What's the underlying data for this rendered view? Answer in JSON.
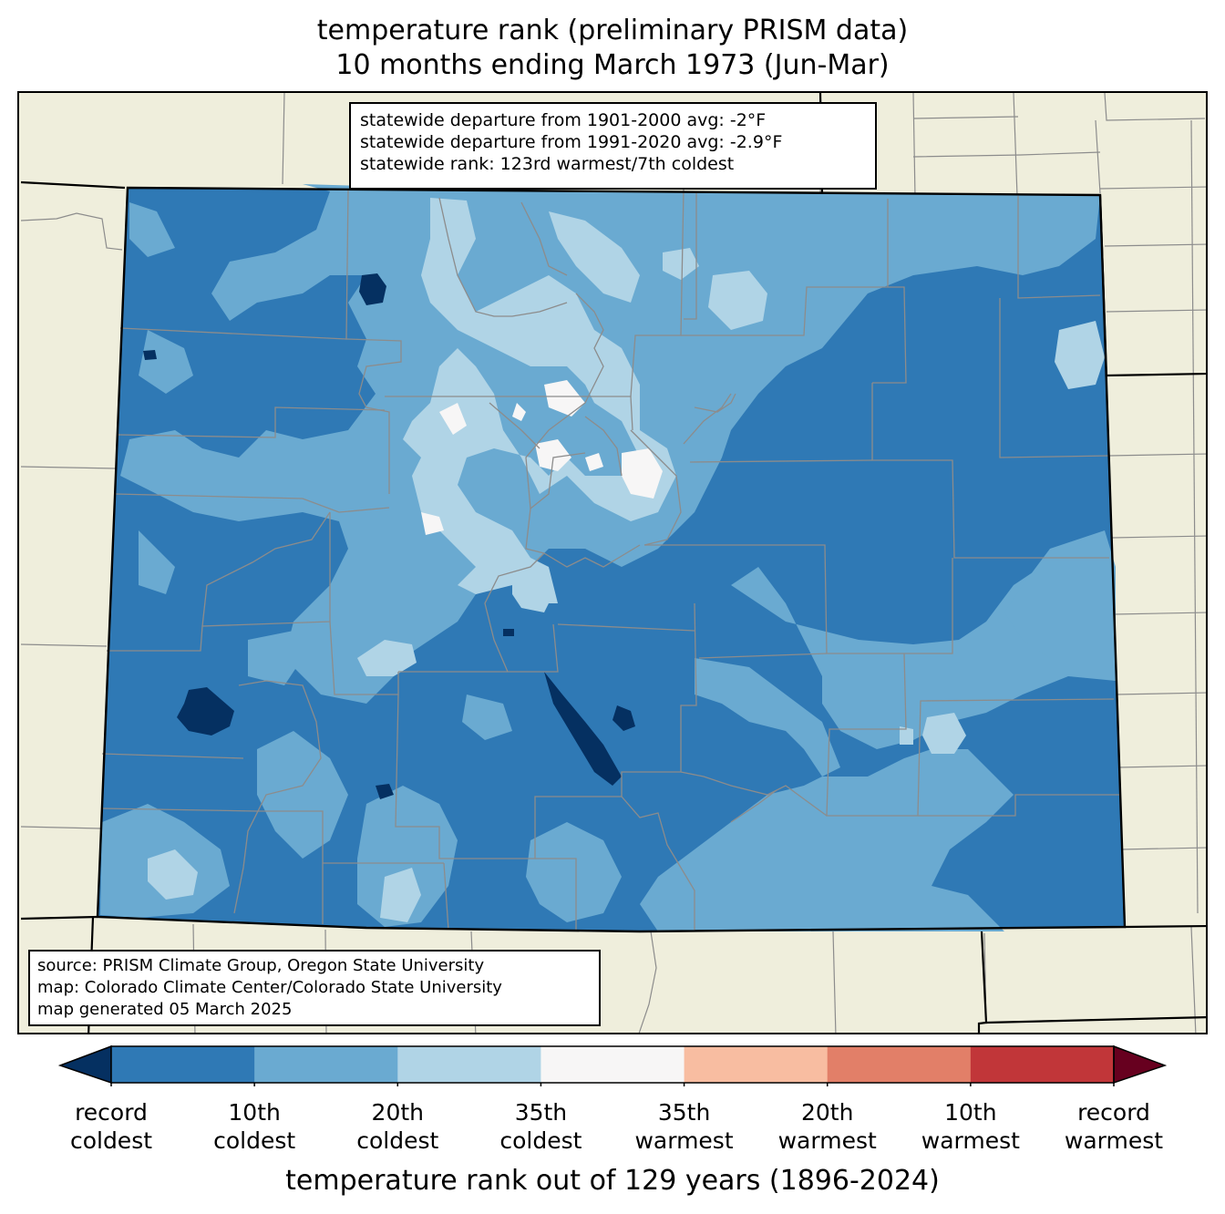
{
  "title": {
    "line1": "temperature rank (preliminary PRISM data)",
    "line2": "10 months ending March 1973 (Jun-Mar)"
  },
  "stats": {
    "line1": "statewide departure from 1901-2000 avg: -2°F",
    "line2": "statewide departure from 1991-2020 avg: -2.9°F",
    "line3": "statewide rank: 123rd warmest/7th coldest"
  },
  "source": {
    "line1": "source: PRISM Climate Group, Oregon State University",
    "line2": "map: Colorado Climate Center/Colorado State University",
    "line3": "map generated 05 March 2025"
  },
  "colorbar": {
    "title": "temperature rank out of 129 years (1896-2024)",
    "under_color": "#053061",
    "over_color": "#67001f",
    "bins": [
      "#2f79b5",
      "#6aaad1",
      "#b0d4e6",
      "#f7f6f6",
      "#f8bda1",
      "#e27f68",
      "#c13639"
    ],
    "ticks": [
      {
        "top": "record",
        "bottom": "coldest"
      },
      {
        "top": "10th",
        "bottom": "coldest"
      },
      {
        "top": "20th",
        "bottom": "coldest"
      },
      {
        "top": "35th",
        "bottom": "coldest"
      },
      {
        "top": "35th",
        "bottom": "warmest"
      },
      {
        "top": "20th",
        "bottom": "warmest"
      },
      {
        "top": "10th",
        "bottom": "warmest"
      },
      {
        "top": "record",
        "bottom": "warmest"
      }
    ]
  },
  "map_colors": {
    "land": "#efeedc",
    "record_coldest": "#053061",
    "rank_10th_coldest": "#2f79b5",
    "rank_20th_coldest": "#6aaad1",
    "rank_35th_coldest": "#b0d4e6",
    "near_normal": "#f7f6f6"
  }
}
